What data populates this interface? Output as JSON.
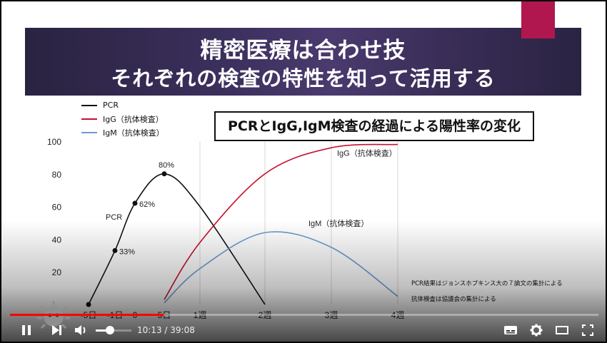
{
  "slide": {
    "title_line1": "精密医療は合わせ技",
    "title_line2": "それぞれの検査の特性を知って活用する",
    "chart_title": "PCRとIgG,IgM検査の経過による陽性率の変化",
    "legend": [
      {
        "label": "PCR",
        "color": "#111111"
      },
      {
        "label": "IgG（抗体検査）",
        "color": "#c8102e"
      },
      {
        "label": "IgM（抗体検査）",
        "color": "#6b9bd1"
      }
    ],
    "notes": [
      "PCR結果はジョンスホプキンス大の７論文の集計による",
      "抗体検査は協議会の集計による"
    ]
  },
  "chart_data": {
    "type": "line",
    "title": "PCRとIgG,IgM検査の経過による陽性率の変化",
    "y_ticks": [
      "100",
      "80",
      "60",
      "40",
      "20"
    ],
    "x_ticks": [
      "-5日",
      "-1日",
      "0",
      "5日",
      "1週",
      "2週",
      "3週",
      "4週"
    ],
    "ylim": [
      0,
      100
    ],
    "grid": "vertical",
    "series": [
      {
        "name": "PCR",
        "color": "#111111",
        "label": "PCR",
        "points": [
          [
            "-5日",
            0
          ],
          [
            "-1日",
            33
          ],
          [
            "0",
            62
          ],
          [
            "5日",
            80
          ],
          [
            "1週",
            60
          ],
          [
            "2週",
            0
          ]
        ],
        "annotations": [
          {
            "x": "-1日",
            "text": "33%"
          },
          {
            "x": "0",
            "text": "62%"
          },
          {
            "x": "5日",
            "text": "80%"
          }
        ]
      },
      {
        "name": "IgG（抗体検査）",
        "color": "#c8102e",
        "label": "IgG（抗体検査）",
        "points": [
          [
            "5日",
            3
          ],
          [
            "1週",
            38
          ],
          [
            "2週",
            80
          ],
          [
            "3週",
            96
          ],
          [
            "4週",
            98
          ]
        ]
      },
      {
        "name": "IgM（抗体検査）",
        "color": "#6b9bd1",
        "label": "IgM（抗体検査）",
        "points": [
          [
            "5日",
            1
          ],
          [
            "1週",
            22
          ],
          [
            "2週",
            44
          ],
          [
            "3週",
            35
          ],
          [
            "4週",
            5
          ]
        ]
      }
    ]
  },
  "player": {
    "time_text": "10:13 / 39:08",
    "progress_fraction": 0.261,
    "volume_fraction": 0.4
  }
}
